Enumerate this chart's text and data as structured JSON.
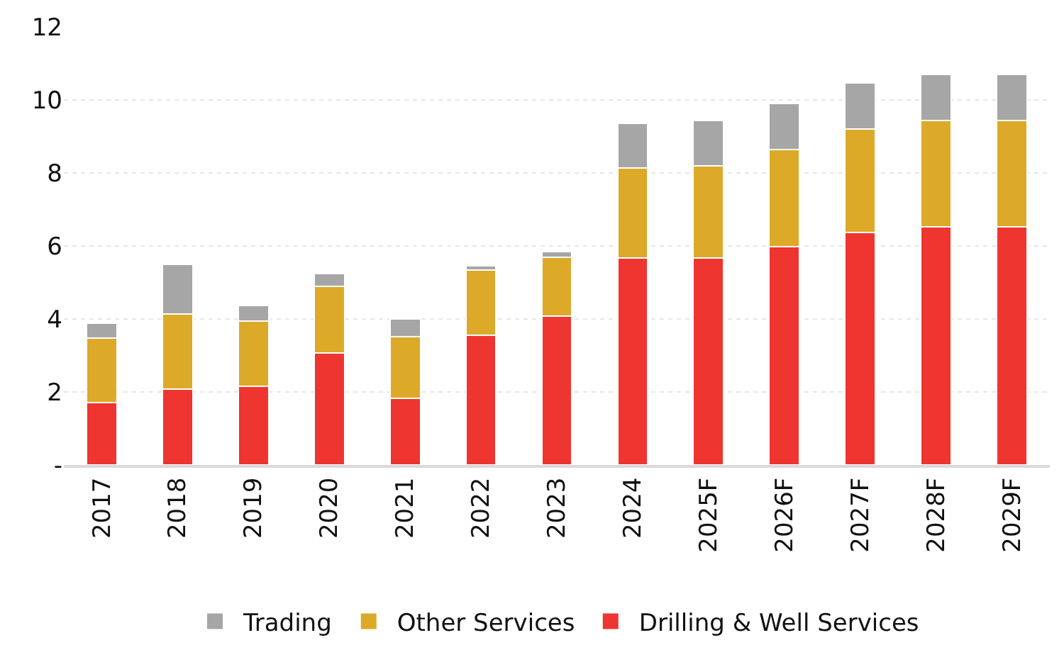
{
  "chart_data": {
    "type": "bar",
    "stacked": true,
    "categories": [
      "2017",
      "2018",
      "2019",
      "2020",
      "2021",
      "2022",
      "2023",
      "2024",
      "2025F",
      "2026F",
      "2027F",
      "2028F",
      "2029F"
    ],
    "series": [
      {
        "name": "Drilling & Well Services",
        "color": "#ee3530",
        "values": [
          1.71,
          2.08,
          2.15,
          3.07,
          1.82,
          3.55,
          4.07,
          5.67,
          5.67,
          5.99,
          6.37,
          6.53,
          6.53
        ]
      },
      {
        "name": "Other Services",
        "color": "#dcaa28",
        "values": [
          1.76,
          2.05,
          1.79,
          1.83,
          1.69,
          1.79,
          1.61,
          2.47,
          2.53,
          2.65,
          2.84,
          2.9,
          2.9
        ]
      },
      {
        "name": "Trading",
        "color": "#a6a6a6",
        "values": [
          0.41,
          1.37,
          0.42,
          0.34,
          0.49,
          0.12,
          0.16,
          1.22,
          1.24,
          1.26,
          1.25,
          1.27,
          1.27
        ]
      }
    ],
    "ylim": [
      0,
      12
    ],
    "yticks": [
      {
        "value": 0,
        "label": "-"
      },
      2,
      4,
      6,
      8,
      10,
      12
    ],
    "grid": "y",
    "legend": "bottom"
  }
}
